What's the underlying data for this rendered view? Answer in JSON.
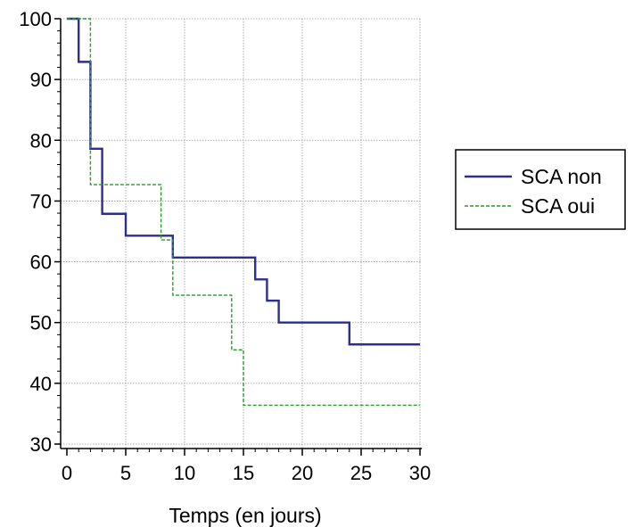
{
  "chart_data": {
    "type": "line",
    "title": "",
    "xlabel": "Temps (en jours)",
    "ylabel": "",
    "xlim": [
      0,
      30
    ],
    "ylim": [
      30,
      100
    ],
    "xticks": [
      0,
      5,
      10,
      15,
      20,
      25,
      30
    ],
    "yticks": [
      30,
      40,
      50,
      60,
      70,
      80,
      90,
      100
    ],
    "grid": true,
    "legend_position": "right",
    "series": [
      {
        "name": "SCA non",
        "color": "#2e2f8c",
        "style": "solid",
        "x": [
          0,
          1,
          2,
          3,
          5,
          9,
          16,
          17,
          18,
          24,
          30
        ],
        "y": [
          100,
          92.9,
          78.6,
          67.9,
          64.3,
          60.7,
          57.1,
          53.6,
          50.0,
          46.4,
          46.4
        ]
      },
      {
        "name": "SCA oui",
        "color": "#2a9a2a",
        "style": "dashed",
        "x": [
          0,
          2,
          8,
          9,
          14,
          15,
          30
        ],
        "y": [
          100,
          72.7,
          63.6,
          54.5,
          45.5,
          36.4,
          36.4
        ]
      }
    ]
  }
}
